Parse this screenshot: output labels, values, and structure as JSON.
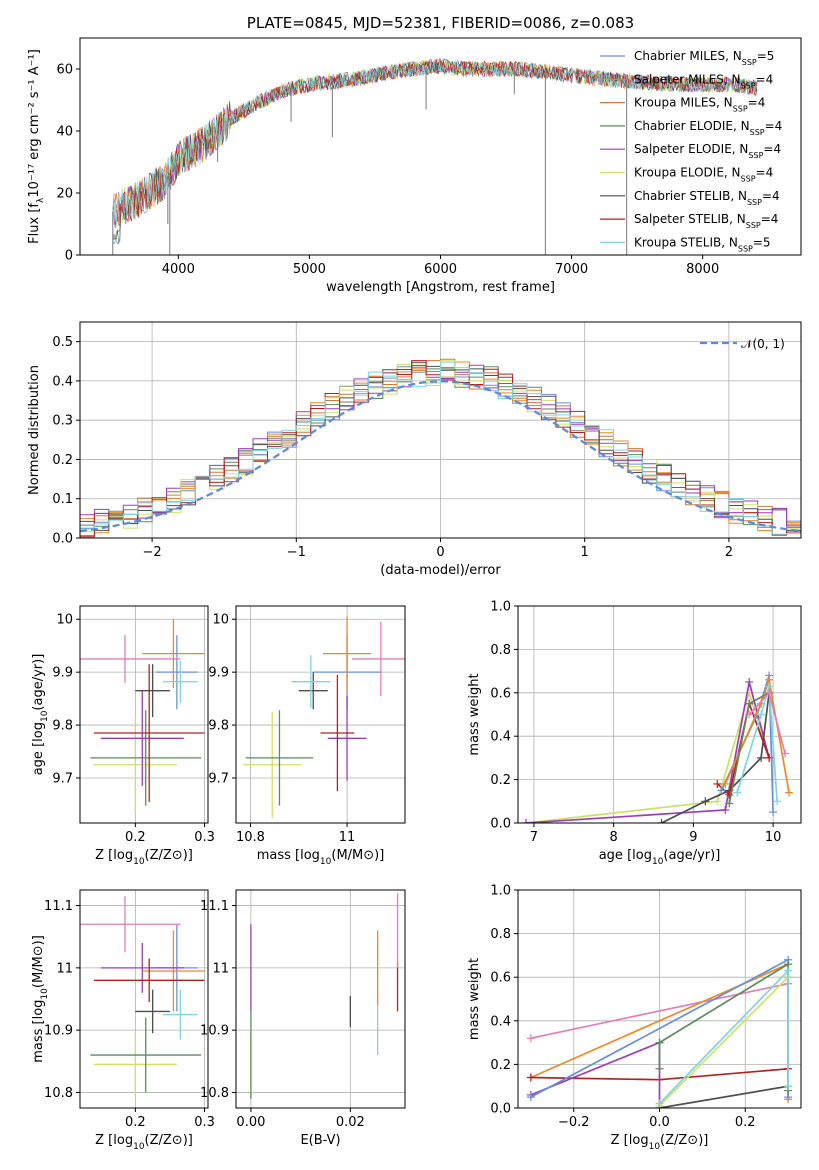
{
  "colors": {
    "Chabrier MILES": "#6a8fd8",
    "Salpeter MILES": "#e8892a",
    "Kroupa MILES": "#d9763a",
    "Chabrier ELODIE": "#5e8a5e",
    "Salpeter ELODIE": "#9a3fb8",
    "Kroupa ELODIE": "#cfe06a",
    "Chabrier STELIB": "#4d4d4d",
    "Salpeter STELIB": "#b22222",
    "Kroupa STELIB": "#7fd4e0",
    "pink": "#e07fb8"
  },
  "chart_data": [
    {
      "type": "line",
      "title": "PLATE=0845, MJD=52381, FIBERID=0086, z=0.083",
      "xlabel": "wavelength [Angstrom, rest frame]",
      "ylabel": "Flux [fλ10⁻¹⁷ erg cm⁻² s⁻¹ A⁻¹]",
      "xlim": [
        3250,
        8750
      ],
      "ylim": [
        0,
        70
      ],
      "xticks": [
        4000,
        5000,
        6000,
        7000,
        8000
      ],
      "yticks": [
        0,
        20,
        40,
        60
      ],
      "legend_position": "top-right",
      "legend": [
        "Chabrier MILES, N_SSP=5",
        "Salpeter MILES, N_SSP=4",
        "Kroupa MILES, N_SSP=4",
        "Chabrier ELODIE, N_SSP=4",
        "Salpeter ELODIE, N_SSP=4",
        "Kroupa ELODIE, N_SSP=4",
        "Chabrier STELIB, N_SSP=4",
        "Salpeter STELIB, N_SSP=4",
        "Kroupa STELIB, N_SSP=5"
      ],
      "legend_prefix": [
        "Chabrier MILES, N",
        "Salpeter MILES, N",
        "Kroupa MILES, N",
        "Chabrier ELODIE, N",
        "Salpeter ELODIE, N",
        "Kroupa ELODIE, N",
        "Chabrier STELIB, N",
        "Salpeter STELIB, N",
        "Kroupa STELIB, N"
      ],
      "legend_sub": "SSP",
      "legend_suffix": [
        "=5",
        "=4",
        "=4",
        "=4",
        "=4",
        "=4",
        "=4",
        "=4",
        "=5"
      ],
      "continuum_x": [
        3500,
        3700,
        3900,
        4000,
        4200,
        4400,
        4600,
        4800,
        5000,
        5200,
        5400,
        5600,
        5800,
        6000,
        6200,
        6400,
        6600,
        6800,
        7000,
        7200,
        7400,
        7800,
        8200,
        8400
      ],
      "continuum_y": [
        14,
        18,
        24,
        31,
        36,
        44,
        49,
        53,
        55,
        56,
        57,
        59,
        60,
        61,
        60,
        60,
        60,
        59,
        58,
        57,
        56,
        55,
        55,
        54
      ],
      "features": [
        {
          "x": 3500,
          "y": 0
        },
        {
          "x": 3920,
          "y": 10
        },
        {
          "x": 3935,
          "y": 0
        },
        {
          "x": 4300,
          "y": 30
        },
        {
          "x": 4860,
          "y": 43
        },
        {
          "x": 5175,
          "y": 38
        },
        {
          "x": 5890,
          "y": 47
        },
        {
          "x": 6563,
          "y": 52
        },
        {
          "x": 6800,
          "y": 0
        },
        {
          "x": 7420,
          "y": 0
        }
      ]
    },
    {
      "type": "bar",
      "xlabel": "(data-model)/error",
      "ylabel": "Normed distribution",
      "xlim": [
        -2.5,
        2.5
      ],
      "ylim": [
        0,
        0.55
      ],
      "xticks": [
        -2,
        -1,
        0,
        1,
        2
      ],
      "xtick_labels": [
        "−2",
        "−1",
        "0",
        "1",
        "2"
      ],
      "yticks": [
        0.0,
        0.1,
        0.2,
        0.3,
        0.4,
        0.5
      ],
      "ytick_labels": [
        "0.0",
        "0.1",
        "0.2",
        "0.3",
        "0.4",
        "0.5"
      ],
      "legend": [
        "𝒩(0, 1)"
      ],
      "legend_position": "top-right",
      "bin_width": 0.1
    },
    {
      "type": "scatter",
      "xlabel": "Z [log10(Z/Z⊙)]",
      "ylabel": "age  [log10(age/yr)]",
      "xlim": [
        0.12,
        0.305
      ],
      "ylim": [
        9.615,
        10.025
      ],
      "xticks": [
        0.2,
        0.3
      ],
      "yticks": [
        9.7,
        9.8,
        9.9,
        10.0
      ],
      "points": [
        {
          "s": "Chabrier MILES",
          "x": 0.26,
          "y": 9.9,
          "xe": 0.03,
          "ye": 0.07
        },
        {
          "s": "Salpeter MILES",
          "x": 0.255,
          "y": 9.935,
          "xe": 0.045,
          "ye": 0.065
        },
        {
          "s": "Kroupa ELODIE",
          "x": 0.2,
          "y": 9.725,
          "xe": 0.06,
          "ye": 0.09
        },
        {
          "s": "Chabrier ELODIE",
          "x": 0.215,
          "y": 9.738,
          "xe": 0.08,
          "ye": 0.09
        },
        {
          "s": "Salpeter ELODIE",
          "x": 0.21,
          "y": 9.775,
          "xe": 0.06,
          "ye": 0.09
        },
        {
          "s": "Chabrier STELIB",
          "x": 0.225,
          "y": 9.865,
          "xe": 0.025,
          "ye": 0.05
        },
        {
          "s": "Salpeter STELIB",
          "x": 0.22,
          "y": 9.785,
          "xe": 0.08,
          "ye": 0.13
        },
        {
          "s": "Kroupa STELIB",
          "x": 0.265,
          "y": 9.882,
          "xe": 0.025,
          "ye": 0.04
        },
        {
          "s": "pink",
          "x": 0.185,
          "y": 9.925,
          "xe": 0.08,
          "ye": 0.045
        }
      ]
    },
    {
      "type": "scatter",
      "xlabel": "mass [log10(M/M⊙)]",
      "ylabel": "",
      "xlim": [
        10.77,
        11.12
      ],
      "ylim": [
        9.615,
        10.025
      ],
      "xticks": [
        10.8,
        11.0
      ],
      "yticks": [
        9.7,
        9.8,
        9.9,
        10.0
      ],
      "points": [
        {
          "s": "Chabrier MILES",
          "x": 11.0,
          "y": 9.9,
          "xe": 0.07,
          "ye": 0.07
        },
        {
          "s": "Salpeter MILES",
          "x": 11.0,
          "y": 9.935,
          "xe": 0.05,
          "ye": 0.07
        },
        {
          "s": "Kroupa ELODIE",
          "x": 10.845,
          "y": 9.725,
          "xe": 0.06,
          "ye": 0.1
        },
        {
          "s": "Chabrier ELODIE",
          "x": 10.86,
          "y": 9.738,
          "xe": 0.07,
          "ye": 0.09
        },
        {
          "s": "Salpeter ELODIE",
          "x": 11.0,
          "y": 9.775,
          "xe": 0.04,
          "ye": 0.08
        },
        {
          "s": "Chabrier STELIB",
          "x": 10.93,
          "y": 9.865,
          "xe": 0.03,
          "ye": 0.035
        },
        {
          "s": "Salpeter STELIB",
          "x": 10.98,
          "y": 9.785,
          "xe": 0.035,
          "ye": 0.11
        },
        {
          "s": "Kroupa STELIB",
          "x": 10.925,
          "y": 9.882,
          "xe": 0.04,
          "ye": 0.05
        },
        {
          "s": "pink",
          "x": 11.07,
          "y": 9.925,
          "xe": 0.06,
          "ye": 0.07
        }
      ]
    },
    {
      "type": "line",
      "xlabel": "age  [log10(age/yr)]",
      "ylabel": "mass weight",
      "xlim": [
        6.8,
        10.35
      ],
      "ylim": [
        0,
        1
      ],
      "xticks": [
        7,
        8,
        9,
        10
      ],
      "yticks": [
        0.0,
        0.2,
        0.4,
        0.6,
        0.8,
        1.0
      ],
      "ytick_labels": [
        "0.0",
        "0.2",
        "0.4",
        "0.6",
        "0.8",
        "1.0"
      ],
      "series": [
        {
          "s": "Kroupa ELODIE",
          "x": [
            6.9,
            9.3,
            9.7,
            9.95
          ],
          "y": [
            0.0,
            0.1,
            0.6,
            0.3
          ]
        },
        {
          "s": "Salpeter ELODIE",
          "x": [
            6.9,
            9.4,
            9.7,
            9.95
          ],
          "y": [
            0.0,
            0.06,
            0.65,
            0.3
          ]
        },
        {
          "s": "Chabrier STELIB",
          "x": [
            8.6,
            9.15,
            9.45,
            9.85,
            9.95
          ],
          "y": [
            0.0,
            0.1,
            0.15,
            0.3,
            0.6
          ]
        },
        {
          "s": "Salpeter STELIB",
          "x": [
            9.3,
            9.45,
            9.7,
            9.95
          ],
          "y": [
            0.18,
            0.13,
            0.55,
            0.3
          ]
        },
        {
          "s": "Chabrier MILES",
          "x": [
            9.35,
            9.8,
            9.95,
            10.0
          ],
          "y": [
            0.15,
            0.5,
            0.68,
            0.05
          ]
        },
        {
          "s": "Salpeter MILES",
          "x": [
            9.4,
            9.85,
            9.95,
            10.2
          ],
          "y": [
            0.18,
            0.55,
            0.66,
            0.14
          ]
        },
        {
          "s": "Kroupa STELIB",
          "x": [
            9.55,
            9.85,
            9.95,
            10.05
          ],
          "y": [
            0.14,
            0.5,
            0.63,
            0.1
          ]
        },
        {
          "s": "Chabrier ELODIE",
          "x": [
            9.45,
            9.7,
            9.95
          ],
          "y": [
            0.09,
            0.55,
            0.6
          ]
        },
        {
          "s": "pink",
          "x": [
            9.7,
            9.95,
            10.15
          ],
          "y": [
            0.5,
            0.6,
            0.32
          ]
        }
      ]
    },
    {
      "type": "scatter",
      "xlabel": "Z [log10(Z/Z⊙)]",
      "ylabel": "mass [log10(M/M⊙)]",
      "xlim": [
        0.12,
        0.305
      ],
      "ylim": [
        10.775,
        11.125
      ],
      "xticks": [
        0.2,
        0.3
      ],
      "yticks": [
        10.8,
        10.9,
        11.0,
        11.1
      ],
      "points": [
        {
          "s": "Chabrier MILES",
          "x": 0.26,
          "y": 11.0,
          "xe": 0.03,
          "ye": 0.07
        },
        {
          "s": "Salpeter MILES",
          "x": 0.255,
          "y": 10.995,
          "xe": 0.045,
          "ye": 0.065
        },
        {
          "s": "Kroupa ELODIE",
          "x": 0.2,
          "y": 10.845,
          "xe": 0.06,
          "ye": 0.05
        },
        {
          "s": "Chabrier ELODIE",
          "x": 0.215,
          "y": 10.86,
          "xe": 0.08,
          "ye": 0.06
        },
        {
          "s": "Salpeter ELODIE",
          "x": 0.21,
          "y": 11.0,
          "xe": 0.06,
          "ye": 0.04
        },
        {
          "s": "Chabrier STELIB",
          "x": 0.225,
          "y": 10.93,
          "xe": 0.025,
          "ye": 0.035
        },
        {
          "s": "Salpeter STELIB",
          "x": 0.22,
          "y": 10.98,
          "xe": 0.08,
          "ye": 0.035
        },
        {
          "s": "Kroupa STELIB",
          "x": 0.265,
          "y": 10.925,
          "xe": 0.025,
          "ye": 0.04
        },
        {
          "s": "pink",
          "x": 0.185,
          "y": 11.07,
          "xe": 0.08,
          "ye": 0.045
        }
      ]
    },
    {
      "type": "scatter",
      "xlabel": "E(B-V)",
      "ylabel": "",
      "xlim": [
        -0.003,
        0.031
      ],
      "ylim": [
        10.775,
        11.125
      ],
      "xticks": [
        0.0,
        0.02
      ],
      "xtick_labels": [
        "0.00",
        "0.02"
      ],
      "yticks": [
        10.8,
        10.9,
        11.0,
        11.1
      ],
      "points": [
        {
          "s": "Salpeter ELODIE",
          "x": 0.0,
          "y": 11.0,
          "ye": 0.07
        },
        {
          "s": "Kroupa ELODIE",
          "x": 0.0,
          "y": 10.845,
          "ye": 0.055
        },
        {
          "s": "Chabrier ELODIE",
          "x": 0.0,
          "y": 10.86,
          "ye": 0.07
        },
        {
          "s": "Chabrier STELIB",
          "x": 0.02,
          "y": 10.93,
          "ye": 0.025
        },
        {
          "s": "Salpeter MILES",
          "x": 0.0255,
          "y": 11.0,
          "ye": 0.06
        },
        {
          "s": "Kroupa STELIB",
          "x": 0.0255,
          "y": 10.9,
          "ye": 0.04
        },
        {
          "s": "Salpeter STELIB",
          "x": 0.0295,
          "y": 10.97,
          "ye": 0.04
        },
        {
          "s": "pink",
          "x": 0.0295,
          "y": 11.06,
          "ye": 0.06
        }
      ]
    },
    {
      "type": "line",
      "xlabel": "Z [log10(Z/Z⊙)]",
      "ylabel": "mass weight",
      "xlim": [
        -0.33,
        0.33
      ],
      "ylim": [
        0,
        1
      ],
      "xticks": [
        -0.2,
        0.0,
        0.2
      ],
      "xtick_labels": [
        "−0.2",
        "0.0",
        "0.2"
      ],
      "yticks": [
        0.0,
        0.2,
        0.4,
        0.6,
        0.8,
        1.0
      ],
      "ytick_labels": [
        "0.0",
        "0.2",
        "0.4",
        "0.6",
        "0.8",
        "1.0"
      ],
      "series": [
        {
          "s": "pink",
          "x": [
            -0.3,
            0.3
          ],
          "y": [
            0.32,
            0.57
          ]
        },
        {
          "s": "Salpeter MILES",
          "x": [
            -0.3,
            0.3,
            0.3
          ],
          "y": [
            0.14,
            0.66,
            0.04
          ]
        },
        {
          "s": "Salpeter STELIB",
          "x": [
            -0.3,
            0.0,
            0.3
          ],
          "y": [
            0.14,
            0.13,
            0.18
          ]
        },
        {
          "s": "Salpeter ELODIE",
          "x": [
            -0.3,
            0.0,
            0.0
          ],
          "y": [
            0.06,
            0.3,
            0.0
          ]
        },
        {
          "s": "Chabrier MILES",
          "x": [
            -0.3,
            0.3,
            0.3
          ],
          "y": [
            0.05,
            0.68,
            0.05
          ]
        },
        {
          "s": "Chabrier STELIB",
          "x": [
            0.0,
            0.3,
            0.3
          ],
          "y": [
            0.0,
            0.1,
            0.6
          ]
        },
        {
          "s": "Chabrier ELODIE",
          "x": [
            0.0,
            0.0,
            0.3,
            0.3
          ],
          "y": [
            0.18,
            0.3,
            0.66,
            0.08
          ]
        },
        {
          "s": "Kroupa ELODIE",
          "x": [
            0.0,
            0.3,
            0.3
          ],
          "y": [
            0.01,
            0.6,
            0.1
          ]
        },
        {
          "s": "Kroupa STELIB",
          "x": [
            0.0,
            0.3,
            0.3
          ],
          "y": [
            0.02,
            0.63,
            0.1
          ]
        }
      ]
    }
  ]
}
